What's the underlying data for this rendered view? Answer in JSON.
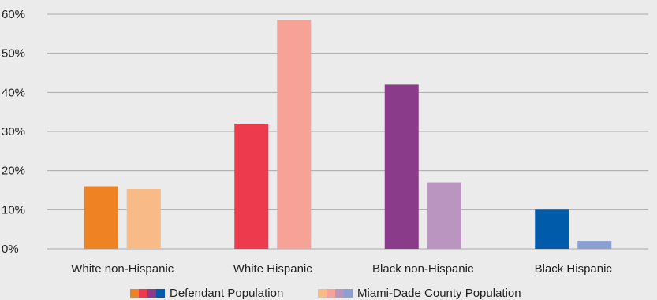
{
  "chart_data": {
    "type": "bar",
    "categories": [
      "White non-Hispanic",
      "White Hispanic",
      "Black non-Hispanic",
      "Black Hispanic"
    ],
    "series": [
      {
        "name": "Defendant Population",
        "values": [
          16,
          32,
          42,
          10
        ],
        "colors": [
          "#ef8223",
          "#ee3a4d",
          "#8a3b8a",
          "#005bab"
        ]
      },
      {
        "name": "Miami-Dade County Population",
        "values": [
          15.3,
          58.5,
          17,
          2
        ],
        "colors": [
          "#f8ba86",
          "#f6a297",
          "#b995c0",
          "#8b9fd3"
        ]
      }
    ],
    "y_ticks": [
      "0%",
      "10%",
      "20%",
      "30%",
      "40%",
      "50%",
      "60%"
    ],
    "ylim": [
      0,
      60
    ],
    "grid": true,
    "legend_position": "bottom-center",
    "title": "",
    "xlabel": "",
    "ylabel": ""
  }
}
